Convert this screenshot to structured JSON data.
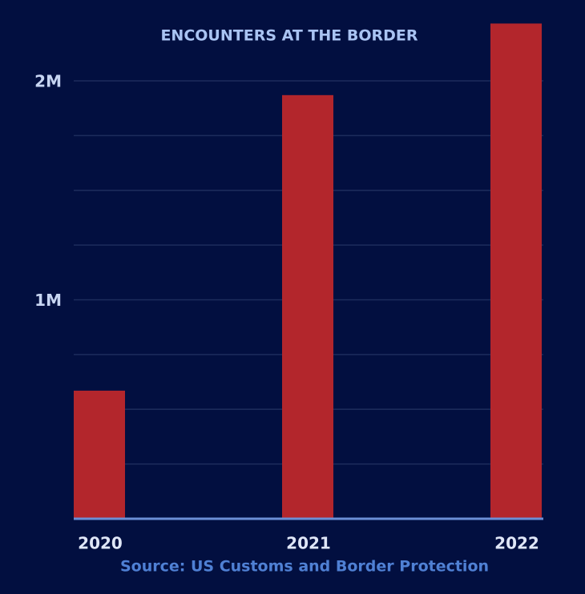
{
  "chart_data": {
    "type": "bar",
    "title": "ENCOUNTERS AT THE BORDER",
    "categories": [
      "2020",
      "2021",
      "2022"
    ],
    "values": [
      585000,
      1935000,
      2262000
    ],
    "color": "#b3262c",
    "ylim": [
      0,
      2300000
    ],
    "yticks": [
      {
        "value": 1000000,
        "label": "1M"
      },
      {
        "value": 2000000,
        "label": "2M"
      }
    ],
    "minor_yticks": [
      250000,
      500000,
      750000,
      1250000,
      1500000,
      1750000
    ],
    "grid": true,
    "source": "Source: US Customs and Border Protection"
  }
}
